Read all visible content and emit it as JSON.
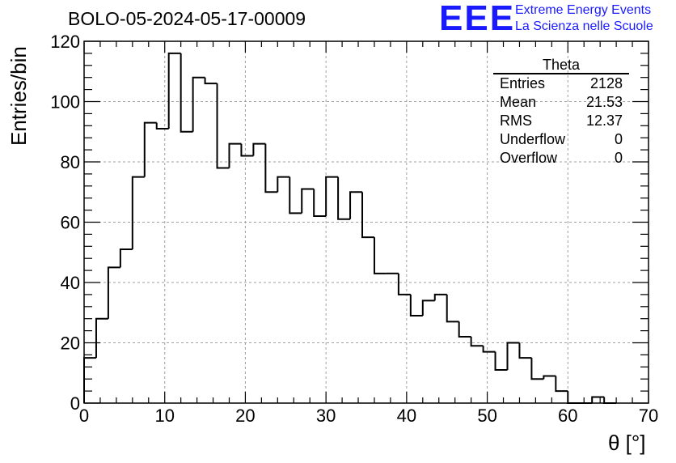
{
  "chart_data": {
    "type": "bar",
    "title": "BOLO-05-2024-05-17-00009",
    "xlabel": "θ [°]",
    "ylabel": "Entries/bin",
    "xlim": [
      0,
      70
    ],
    "ylim": [
      0,
      120
    ],
    "bin_width": 1.5,
    "x_ticks": [
      "0",
      "10",
      "20",
      "30",
      "40",
      "50",
      "60",
      "70"
    ],
    "y_ticks": [
      "0",
      "20",
      "40",
      "60",
      "80",
      "100",
      "120"
    ],
    "grid": true,
    "values": [
      15,
      28,
      45,
      51,
      75,
      93,
      91,
      116,
      90,
      108,
      106,
      78,
      86,
      82,
      86,
      70,
      75,
      63,
      71,
      62,
      75,
      61,
      70,
      55,
      43,
      43,
      36,
      29,
      34,
      36,
      27,
      22,
      19,
      17,
      11,
      20,
      15,
      8,
      9,
      4,
      0,
      0,
      2,
      0
    ]
  },
  "stats": {
    "title": "Theta",
    "rows": [
      {
        "key": "Entries",
        "value": "2128"
      },
      {
        "key": "Mean",
        "value": "21.53"
      },
      {
        "key": "RMS",
        "value": "12.37"
      },
      {
        "key": "Underflow",
        "value": "0"
      },
      {
        "key": "Overflow",
        "value": "0"
      }
    ]
  },
  "logo": {
    "mark": "EEE",
    "line1": "Extreme Energy Events",
    "line2": "La Scienza nelle Scuole"
  }
}
